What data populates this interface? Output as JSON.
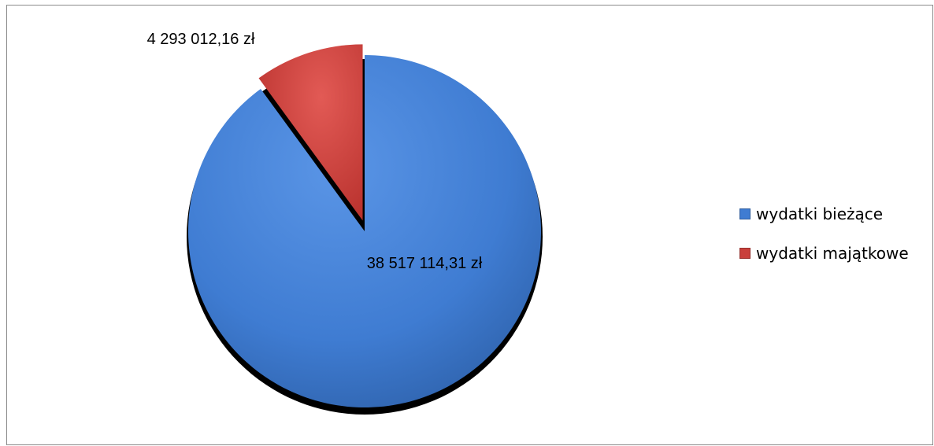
{
  "chart_data": {
    "type": "pie",
    "title": "",
    "categories": [
      "wydatki bieżące",
      "wydatki majątkowe"
    ],
    "values": [
      38517114.31,
      4293012.16
    ],
    "data_labels": [
      "38 517 114,31 zł",
      "4 293 012,16 zł"
    ],
    "colors": [
      "#3f7cd2",
      "#c9403c"
    ],
    "exploded_slice": "wydatki majątkowe",
    "legend_position": "right"
  }
}
